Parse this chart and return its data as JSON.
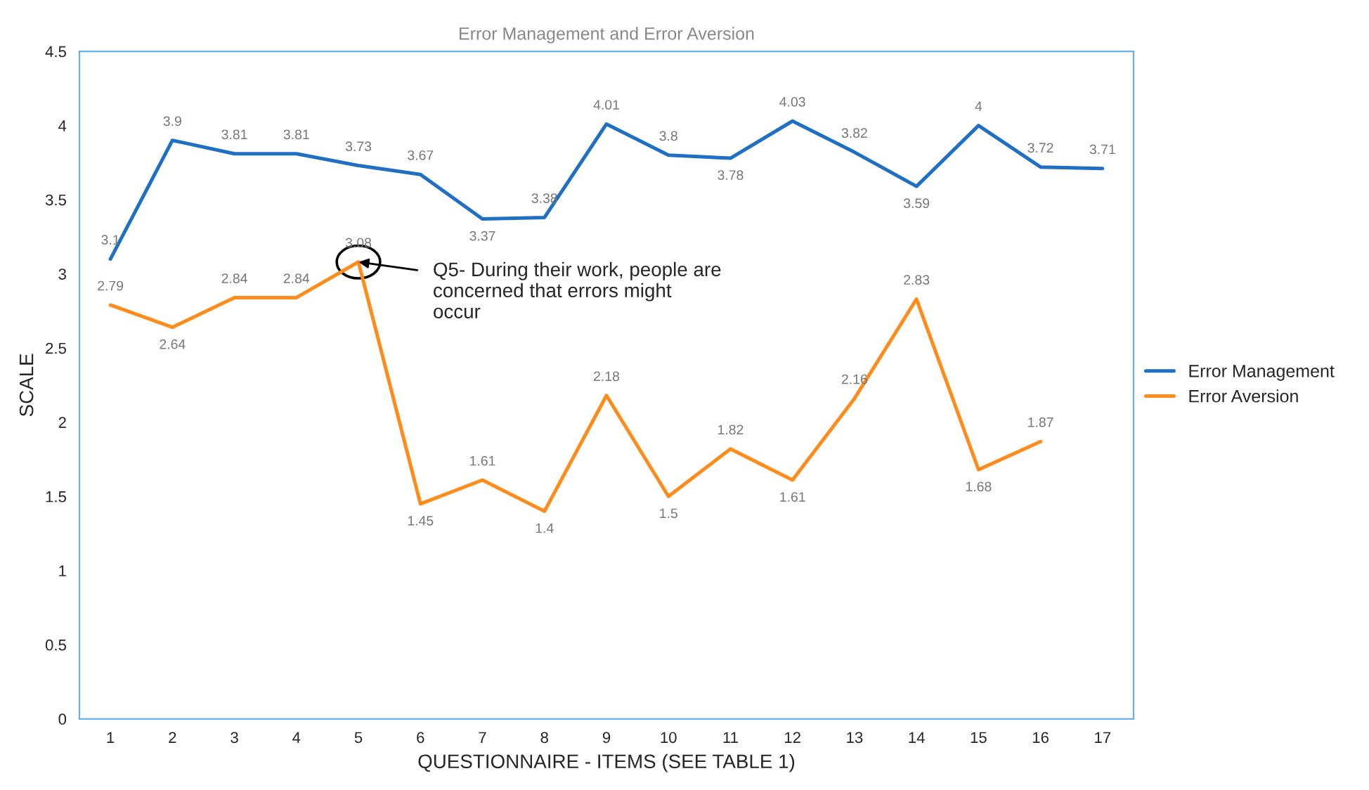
{
  "chart_data": {
    "type": "line",
    "title": "Error Management and Error Aversion",
    "xlabel": "QUESTIONNAIRE - ITEMS (SEE TABLE 1)",
    "ylabel": "SCALE",
    "categories": [
      "1",
      "2",
      "3",
      "4",
      "5",
      "6",
      "7",
      "8",
      "9",
      "10",
      "11",
      "12",
      "13",
      "14",
      "15",
      "16",
      "17"
    ],
    "series": [
      {
        "name": "Error Management",
        "color": "#1f6fc5",
        "values": [
          3.1,
          3.9,
          3.81,
          3.81,
          3.73,
          3.67,
          3.37,
          3.38,
          4.01,
          3.8,
          3.78,
          4.03,
          3.82,
          3.59,
          4,
          3.72,
          3.71
        ]
      },
      {
        "name": "Error Aversion",
        "color": "#ff8c1a",
        "values": [
          2.79,
          2.64,
          2.84,
          2.84,
          3.08,
          1.45,
          1.61,
          1.4,
          2.18,
          1.5,
          1.82,
          1.61,
          2.16,
          2.83,
          1.68,
          1.87,
          null
        ]
      }
    ],
    "ylim": [
      0,
      4.5
    ],
    "yticks": [
      0,
      0.5,
      1,
      1.5,
      2,
      2.5,
      3,
      3.5,
      4,
      4.5
    ],
    "annotations": [
      {
        "text": "Q5- During their work, people are\nconcerned that errors might\noccur",
        "x": "5",
        "y": 3.08
      }
    ],
    "data_labels": true,
    "legend": "right",
    "grid": false,
    "marker": "none",
    "line_style": "solid"
  }
}
